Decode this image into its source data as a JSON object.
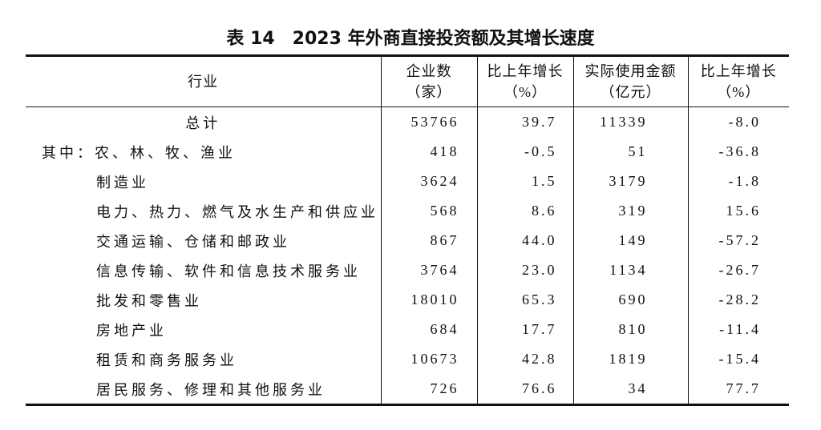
{
  "title": "表 14　2023 年外商直接投资额及其增长速度",
  "table": {
    "header": [
      [
        "行业"
      ],
      [
        "企业数",
        "（家）"
      ],
      [
        "比上年增长",
        "（%）"
      ],
      [
        "实际使用金额",
        "（亿元）"
      ],
      [
        "比上年增长",
        "（%）"
      ]
    ],
    "rows": [
      [
        "总计",
        "53766",
        "39.7",
        "11339",
        "-8.0"
      ],
      [
        "其中：农、林、牧、渔业",
        "418",
        "-0.5",
        "51",
        "-36.8"
      ],
      [
        "制造业",
        "3624",
        "1.5",
        "3179",
        "-1.8"
      ],
      [
        "电力、热力、燃气及水生产和供应业",
        "568",
        "8.6",
        "319",
        "15.6"
      ],
      [
        "交通运输、仓储和邮政业",
        "867",
        "44.0",
        "149",
        "-57.2"
      ],
      [
        "信息传输、软件和信息技术服务业",
        "3764",
        "23.0",
        "1134",
        "-26.7"
      ],
      [
        "批发和零售业",
        "18010",
        "65.3",
        "690",
        "-28.2"
      ],
      [
        "房地产业",
        "684",
        "17.7",
        "810",
        "-11.4"
      ],
      [
        "租赁和商务服务业",
        "10673",
        "42.8",
        "1819",
        "-15.4"
      ],
      [
        "居民服务、修理和其他服务业",
        "726",
        "76.6",
        "34",
        "77.7"
      ]
    ]
  }
}
